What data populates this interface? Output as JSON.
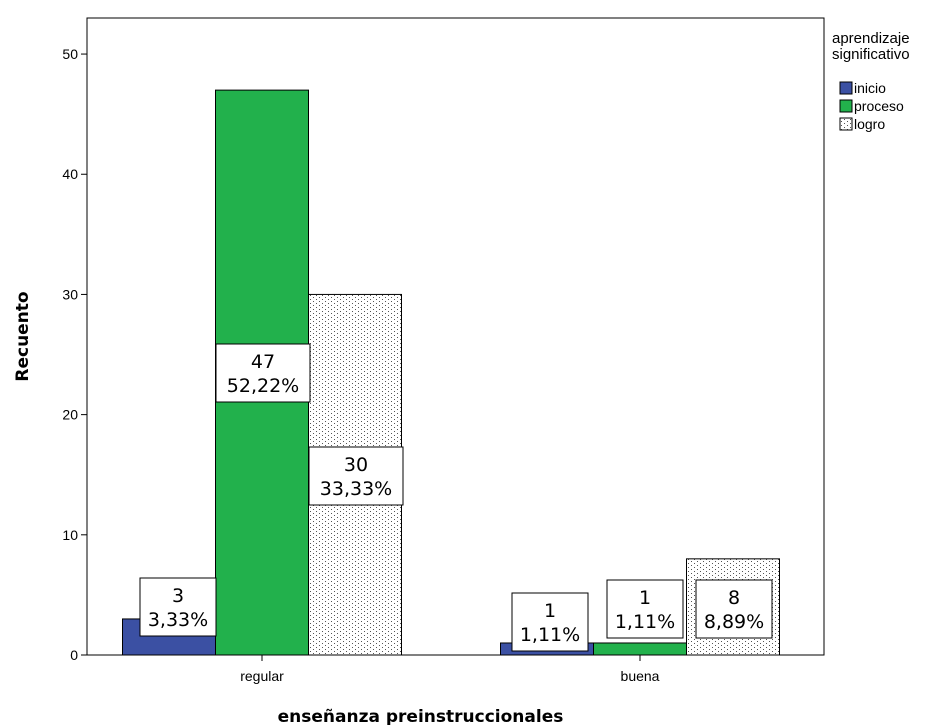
{
  "chart_data": {
    "type": "bar",
    "categories": [
      "regular",
      "buena"
    ],
    "series": [
      {
        "name": "inicio",
        "values": [
          3,
          1
        ],
        "percent_labels": [
          "3,33%",
          "1,11%"
        ],
        "color": "#3b50a3",
        "pattern": "solid"
      },
      {
        "name": "proceso",
        "values": [
          47,
          1
        ],
        "percent_labels": [
          "52,22%",
          "1,11%"
        ],
        "color": "#22b14c",
        "pattern": "solid"
      },
      {
        "name": "logro",
        "values": [
          30,
          8
        ],
        "percent_labels": [
          "33,33%",
          "8,89%"
        ],
        "color": "#ffffff",
        "pattern": "dotted"
      }
    ],
    "xlabel": "enseñanza preinstruccionales",
    "ylabel": "Recuento",
    "ylim": [
      0,
      53
    ],
    "yticks": [
      0,
      10,
      20,
      30,
      40,
      50
    ],
    "grid": false,
    "legend": {
      "title_lines": [
        "aprendizaje",
        "significativo"
      ],
      "position": "top-right"
    }
  }
}
